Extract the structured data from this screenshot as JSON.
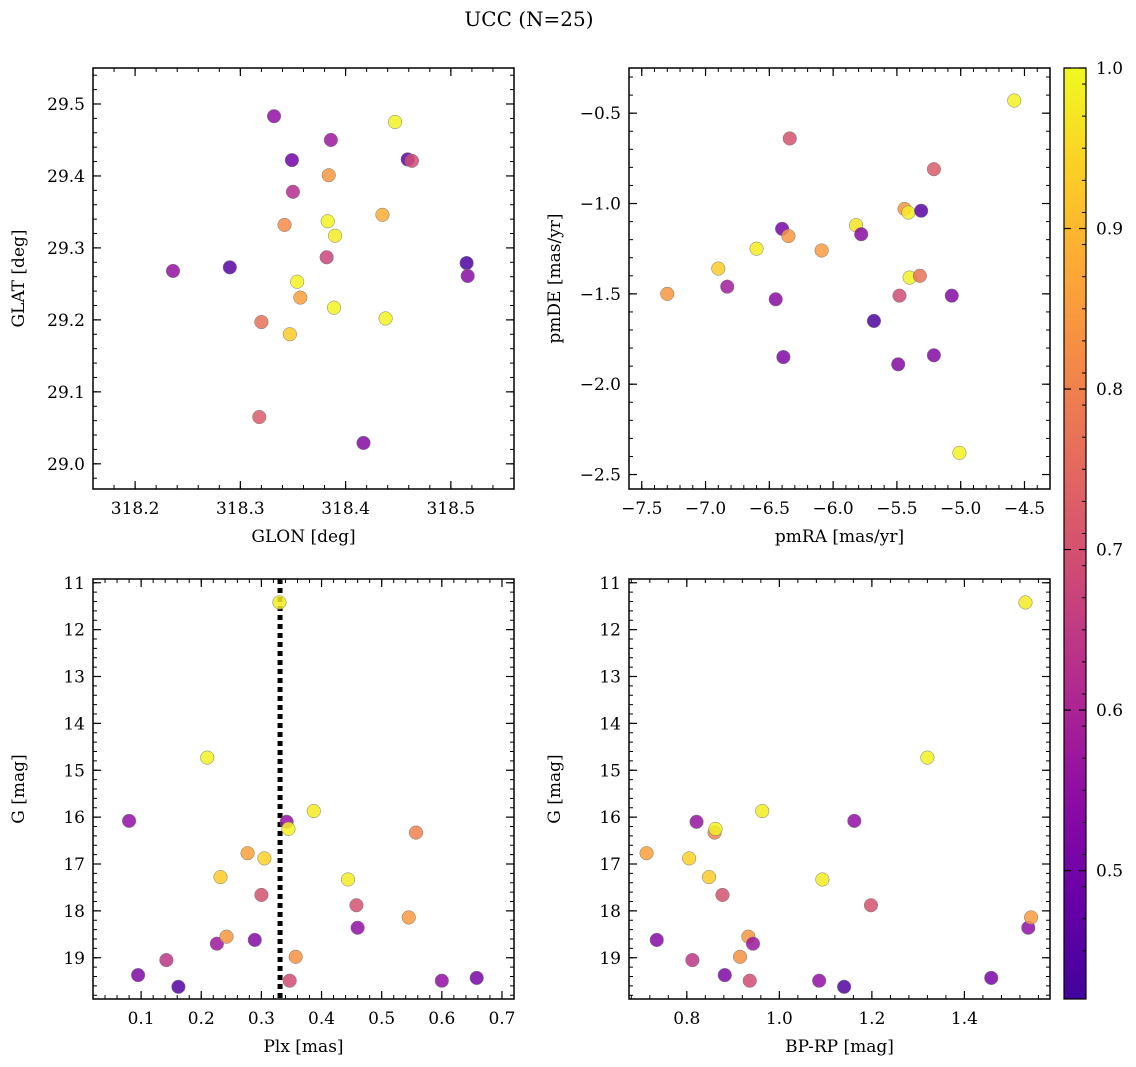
{
  "figure": {
    "title": "UCC (N=25)",
    "colorbar": {
      "range": [
        0.42,
        1.0
      ],
      "ticks": [
        "0.5",
        "0.6",
        "0.7",
        "0.8",
        "0.9",
        "1.0"
      ],
      "tick_values": [
        0.5,
        0.6,
        0.7,
        0.8,
        0.9,
        1.0
      ],
      "colormap": "plasma"
    }
  },
  "chart_data": [
    {
      "id": "glon-glat",
      "type": "scatter",
      "xlabel": "GLON [deg]",
      "ylabel": "GLAT [deg]",
      "xlim": [
        318.16,
        318.56
      ],
      "ylim": [
        28.965,
        29.55
      ],
      "y_inverted": false,
      "xticks": [
        318.2,
        318.3,
        318.4,
        318.5
      ],
      "xtick_labels": [
        "318.2",
        "318.3",
        "318.4",
        "318.5"
      ],
      "yticks": [
        29.0,
        29.1,
        29.2,
        29.3,
        29.4,
        29.5
      ],
      "ytick_labels": [
        "29.0",
        "29.1",
        "29.2",
        "29.3",
        "29.4",
        "29.5"
      ],
      "points": [
        {
          "x": 318.236,
          "y": 29.268,
          "c": 0.56
        },
        {
          "x": 318.29,
          "y": 29.273,
          "c": 0.46
        },
        {
          "x": 318.318,
          "y": 29.065,
          "c": 0.72
        },
        {
          "x": 318.32,
          "y": 29.197,
          "c": 0.77
        },
        {
          "x": 318.332,
          "y": 29.483,
          "c": 0.55
        },
        {
          "x": 318.342,
          "y": 29.332,
          "c": 0.82
        },
        {
          "x": 318.347,
          "y": 29.18,
          "c": 0.93
        },
        {
          "x": 318.349,
          "y": 29.422,
          "c": 0.5
        },
        {
          "x": 318.35,
          "y": 29.378,
          "c": 0.62
        },
        {
          "x": 318.354,
          "y": 29.253,
          "c": 0.99
        },
        {
          "x": 318.357,
          "y": 29.231,
          "c": 0.86
        },
        {
          "x": 318.382,
          "y": 29.287,
          "c": 0.67
        },
        {
          "x": 318.383,
          "y": 29.337,
          "c": 0.99
        },
        {
          "x": 318.384,
          "y": 29.401,
          "c": 0.84
        },
        {
          "x": 318.386,
          "y": 29.45,
          "c": 0.57
        },
        {
          "x": 318.389,
          "y": 29.217,
          "c": 0.99
        },
        {
          "x": 318.39,
          "y": 29.317,
          "c": 0.98
        },
        {
          "x": 318.417,
          "y": 29.029,
          "c": 0.53
        },
        {
          "x": 318.435,
          "y": 29.346,
          "c": 0.88
        },
        {
          "x": 318.438,
          "y": 29.202,
          "c": 0.99
        },
        {
          "x": 318.447,
          "y": 29.475,
          "c": 0.99
        },
        {
          "x": 318.459,
          "y": 29.423,
          "c": 0.47
        },
        {
          "x": 318.463,
          "y": 29.421,
          "c": 0.69
        },
        {
          "x": 318.515,
          "y": 29.279,
          "c": 0.44
        },
        {
          "x": 318.516,
          "y": 29.261,
          "c": 0.54
        }
      ]
    },
    {
      "id": "pmra-pmde",
      "type": "scatter",
      "xlabel": "pmRA [mas/yr]",
      "ylabel": "pmDE [mas/yr]",
      "xlim": [
        -7.6,
        -4.3
      ],
      "ylim": [
        -2.58,
        -0.25
      ],
      "y_inverted": false,
      "xticks": [
        -7.5,
        -7.0,
        -6.5,
        -6.0,
        -5.5,
        -5.0,
        -4.5
      ],
      "xtick_labels": [
        "−7.5",
        "−7.0",
        "−6.5",
        "−6.0",
        "−5.5",
        "−5.0",
        "−4.5"
      ],
      "yticks": [
        -2.5,
        -2.0,
        -1.5,
        -1.0,
        -0.5
      ],
      "ytick_labels": [
        "−2.5",
        "−2.0",
        "−1.5",
        "−1.0",
        "−0.5"
      ],
      "points": [
        {
          "x": -7.3,
          "y": -1.5,
          "c": 0.84
        },
        {
          "x": -6.9,
          "y": -1.36,
          "c": 0.93
        },
        {
          "x": -6.83,
          "y": -1.46,
          "c": 0.58
        },
        {
          "x": -6.6,
          "y": -1.25,
          "c": 0.98
        },
        {
          "x": -6.45,
          "y": -1.53,
          "c": 0.54
        },
        {
          "x": -6.4,
          "y": -1.14,
          "c": 0.51
        },
        {
          "x": -6.39,
          "y": -1.85,
          "c": 0.52
        },
        {
          "x": -6.35,
          "y": -1.18,
          "c": 0.84
        },
        {
          "x": -6.34,
          "y": -0.64,
          "c": 0.7
        },
        {
          "x": -6.09,
          "y": -1.26,
          "c": 0.85
        },
        {
          "x": -5.82,
          "y": -1.12,
          "c": 0.97
        },
        {
          "x": -5.78,
          "y": -1.17,
          "c": 0.54
        },
        {
          "x": -5.68,
          "y": -1.65,
          "c": 0.44
        },
        {
          "x": -5.49,
          "y": -1.89,
          "c": 0.53
        },
        {
          "x": -5.48,
          "y": -1.51,
          "c": 0.69
        },
        {
          "x": -5.44,
          "y": -1.03,
          "c": 0.84
        },
        {
          "x": -5.41,
          "y": -1.05,
          "c": 0.98
        },
        {
          "x": -5.4,
          "y": -1.41,
          "c": 0.99
        },
        {
          "x": -5.32,
          "y": -1.4,
          "c": 0.77
        },
        {
          "x": -5.31,
          "y": -1.04,
          "c": 0.46
        },
        {
          "x": -5.21,
          "y": -0.81,
          "c": 0.72
        },
        {
          "x": -5.21,
          "y": -1.84,
          "c": 0.53
        },
        {
          "x": -5.07,
          "y": -1.51,
          "c": 0.53
        },
        {
          "x": -5.01,
          "y": -2.38,
          "c": 0.99
        },
        {
          "x": -4.58,
          "y": -0.43,
          "c": 0.99
        }
      ]
    },
    {
      "id": "plx-g",
      "type": "scatter",
      "xlabel": "Plx [mas]",
      "ylabel": "G [mag]",
      "xlim": [
        0.02,
        0.72
      ],
      "ylim": [
        10.92,
        19.88
      ],
      "y_inverted": true,
      "xticks": [
        0.1,
        0.2,
        0.3,
        0.4,
        0.5,
        0.6,
        0.7
      ],
      "xtick_labels": [
        "0.1",
        "0.2",
        "0.3",
        "0.4",
        "0.5",
        "0.6",
        "0.7"
      ],
      "yticks": [
        11,
        12,
        13,
        14,
        15,
        16,
        17,
        18,
        19
      ],
      "ytick_labels": [
        "11",
        "12",
        "13",
        "14",
        "15",
        "16",
        "17",
        "18",
        "19"
      ],
      "vline": 0.331,
      "points": [
        {
          "x": 0.08,
          "y": 16.08,
          "c": 0.55
        },
        {
          "x": 0.095,
          "y": 19.37,
          "c": 0.52
        },
        {
          "x": 0.142,
          "y": 19.05,
          "c": 0.64
        },
        {
          "x": 0.162,
          "y": 19.62,
          "c": 0.45
        },
        {
          "x": 0.21,
          "y": 14.73,
          "c": 0.99
        },
        {
          "x": 0.226,
          "y": 18.7,
          "c": 0.57
        },
        {
          "x": 0.232,
          "y": 17.28,
          "c": 0.93
        },
        {
          "x": 0.242,
          "y": 18.55,
          "c": 0.84
        },
        {
          "x": 0.277,
          "y": 16.77,
          "c": 0.86
        },
        {
          "x": 0.289,
          "y": 18.62,
          "c": 0.53
        },
        {
          "x": 0.3,
          "y": 17.66,
          "c": 0.7
        },
        {
          "x": 0.305,
          "y": 16.88,
          "c": 0.94
        },
        {
          "x": 0.33,
          "y": 11.42,
          "c": 0.98
        },
        {
          "x": 0.342,
          "y": 16.1,
          "c": 0.56
        },
        {
          "x": 0.345,
          "y": 16.25,
          "c": 0.99
        },
        {
          "x": 0.347,
          "y": 19.49,
          "c": 0.69
        },
        {
          "x": 0.357,
          "y": 18.98,
          "c": 0.83
        },
        {
          "x": 0.387,
          "y": 15.87,
          "c": 0.98
        },
        {
          "x": 0.444,
          "y": 17.33,
          "c": 0.98
        },
        {
          "x": 0.458,
          "y": 17.88,
          "c": 0.7
        },
        {
          "x": 0.46,
          "y": 18.36,
          "c": 0.55
        },
        {
          "x": 0.545,
          "y": 18.14,
          "c": 0.85
        },
        {
          "x": 0.557,
          "y": 16.33,
          "c": 0.8
        },
        {
          "x": 0.6,
          "y": 19.49,
          "c": 0.55
        },
        {
          "x": 0.658,
          "y": 19.43,
          "c": 0.51
        }
      ]
    },
    {
      "id": "bprp-g",
      "type": "scatter",
      "xlabel": "BP-RP [mag]",
      "ylabel": "G [mag]",
      "xlim": [
        0.675,
        1.585
      ],
      "ylim": [
        10.92,
        19.88
      ],
      "y_inverted": true,
      "xticks": [
        0.8,
        1.0,
        1.2,
        1.4
      ],
      "xtick_labels": [
        "0.8",
        "1.0",
        "1.2",
        "1.4"
      ],
      "yticks": [
        11,
        12,
        13,
        14,
        15,
        16,
        17,
        18,
        19
      ],
      "ytick_labels": [
        "11",
        "12",
        "13",
        "14",
        "15",
        "16",
        "17",
        "18",
        "19"
      ],
      "points": [
        {
          "x": 0.713,
          "y": 16.77,
          "c": 0.86
        },
        {
          "x": 0.735,
          "y": 18.62,
          "c": 0.53
        },
        {
          "x": 0.805,
          "y": 16.88,
          "c": 0.94
        },
        {
          "x": 0.812,
          "y": 19.05,
          "c": 0.64
        },
        {
          "x": 0.821,
          "y": 16.1,
          "c": 0.56
        },
        {
          "x": 0.848,
          "y": 17.28,
          "c": 0.93
        },
        {
          "x": 0.86,
          "y": 16.33,
          "c": 0.8
        },
        {
          "x": 0.862,
          "y": 16.25,
          "c": 0.99
        },
        {
          "x": 0.877,
          "y": 17.66,
          "c": 0.7
        },
        {
          "x": 0.882,
          "y": 19.37,
          "c": 0.52
        },
        {
          "x": 0.915,
          "y": 18.98,
          "c": 0.83
        },
        {
          "x": 0.933,
          "y": 18.55,
          "c": 0.84
        },
        {
          "x": 0.936,
          "y": 19.49,
          "c": 0.69
        },
        {
          "x": 0.943,
          "y": 18.7,
          "c": 0.57
        },
        {
          "x": 0.963,
          "y": 15.87,
          "c": 0.98
        },
        {
          "x": 1.086,
          "y": 19.49,
          "c": 0.55
        },
        {
          "x": 1.093,
          "y": 17.33,
          "c": 0.98
        },
        {
          "x": 1.14,
          "y": 19.62,
          "c": 0.45
        },
        {
          "x": 1.162,
          "y": 16.08,
          "c": 0.55
        },
        {
          "x": 1.198,
          "y": 17.88,
          "c": 0.7
        },
        {
          "x": 1.32,
          "y": 14.73,
          "c": 0.99
        },
        {
          "x": 1.458,
          "y": 19.43,
          "c": 0.51
        },
        {
          "x": 1.532,
          "y": 11.42,
          "c": 0.98
        },
        {
          "x": 1.538,
          "y": 18.36,
          "c": 0.55
        },
        {
          "x": 1.544,
          "y": 18.14,
          "c": 0.85
        }
      ]
    }
  ]
}
